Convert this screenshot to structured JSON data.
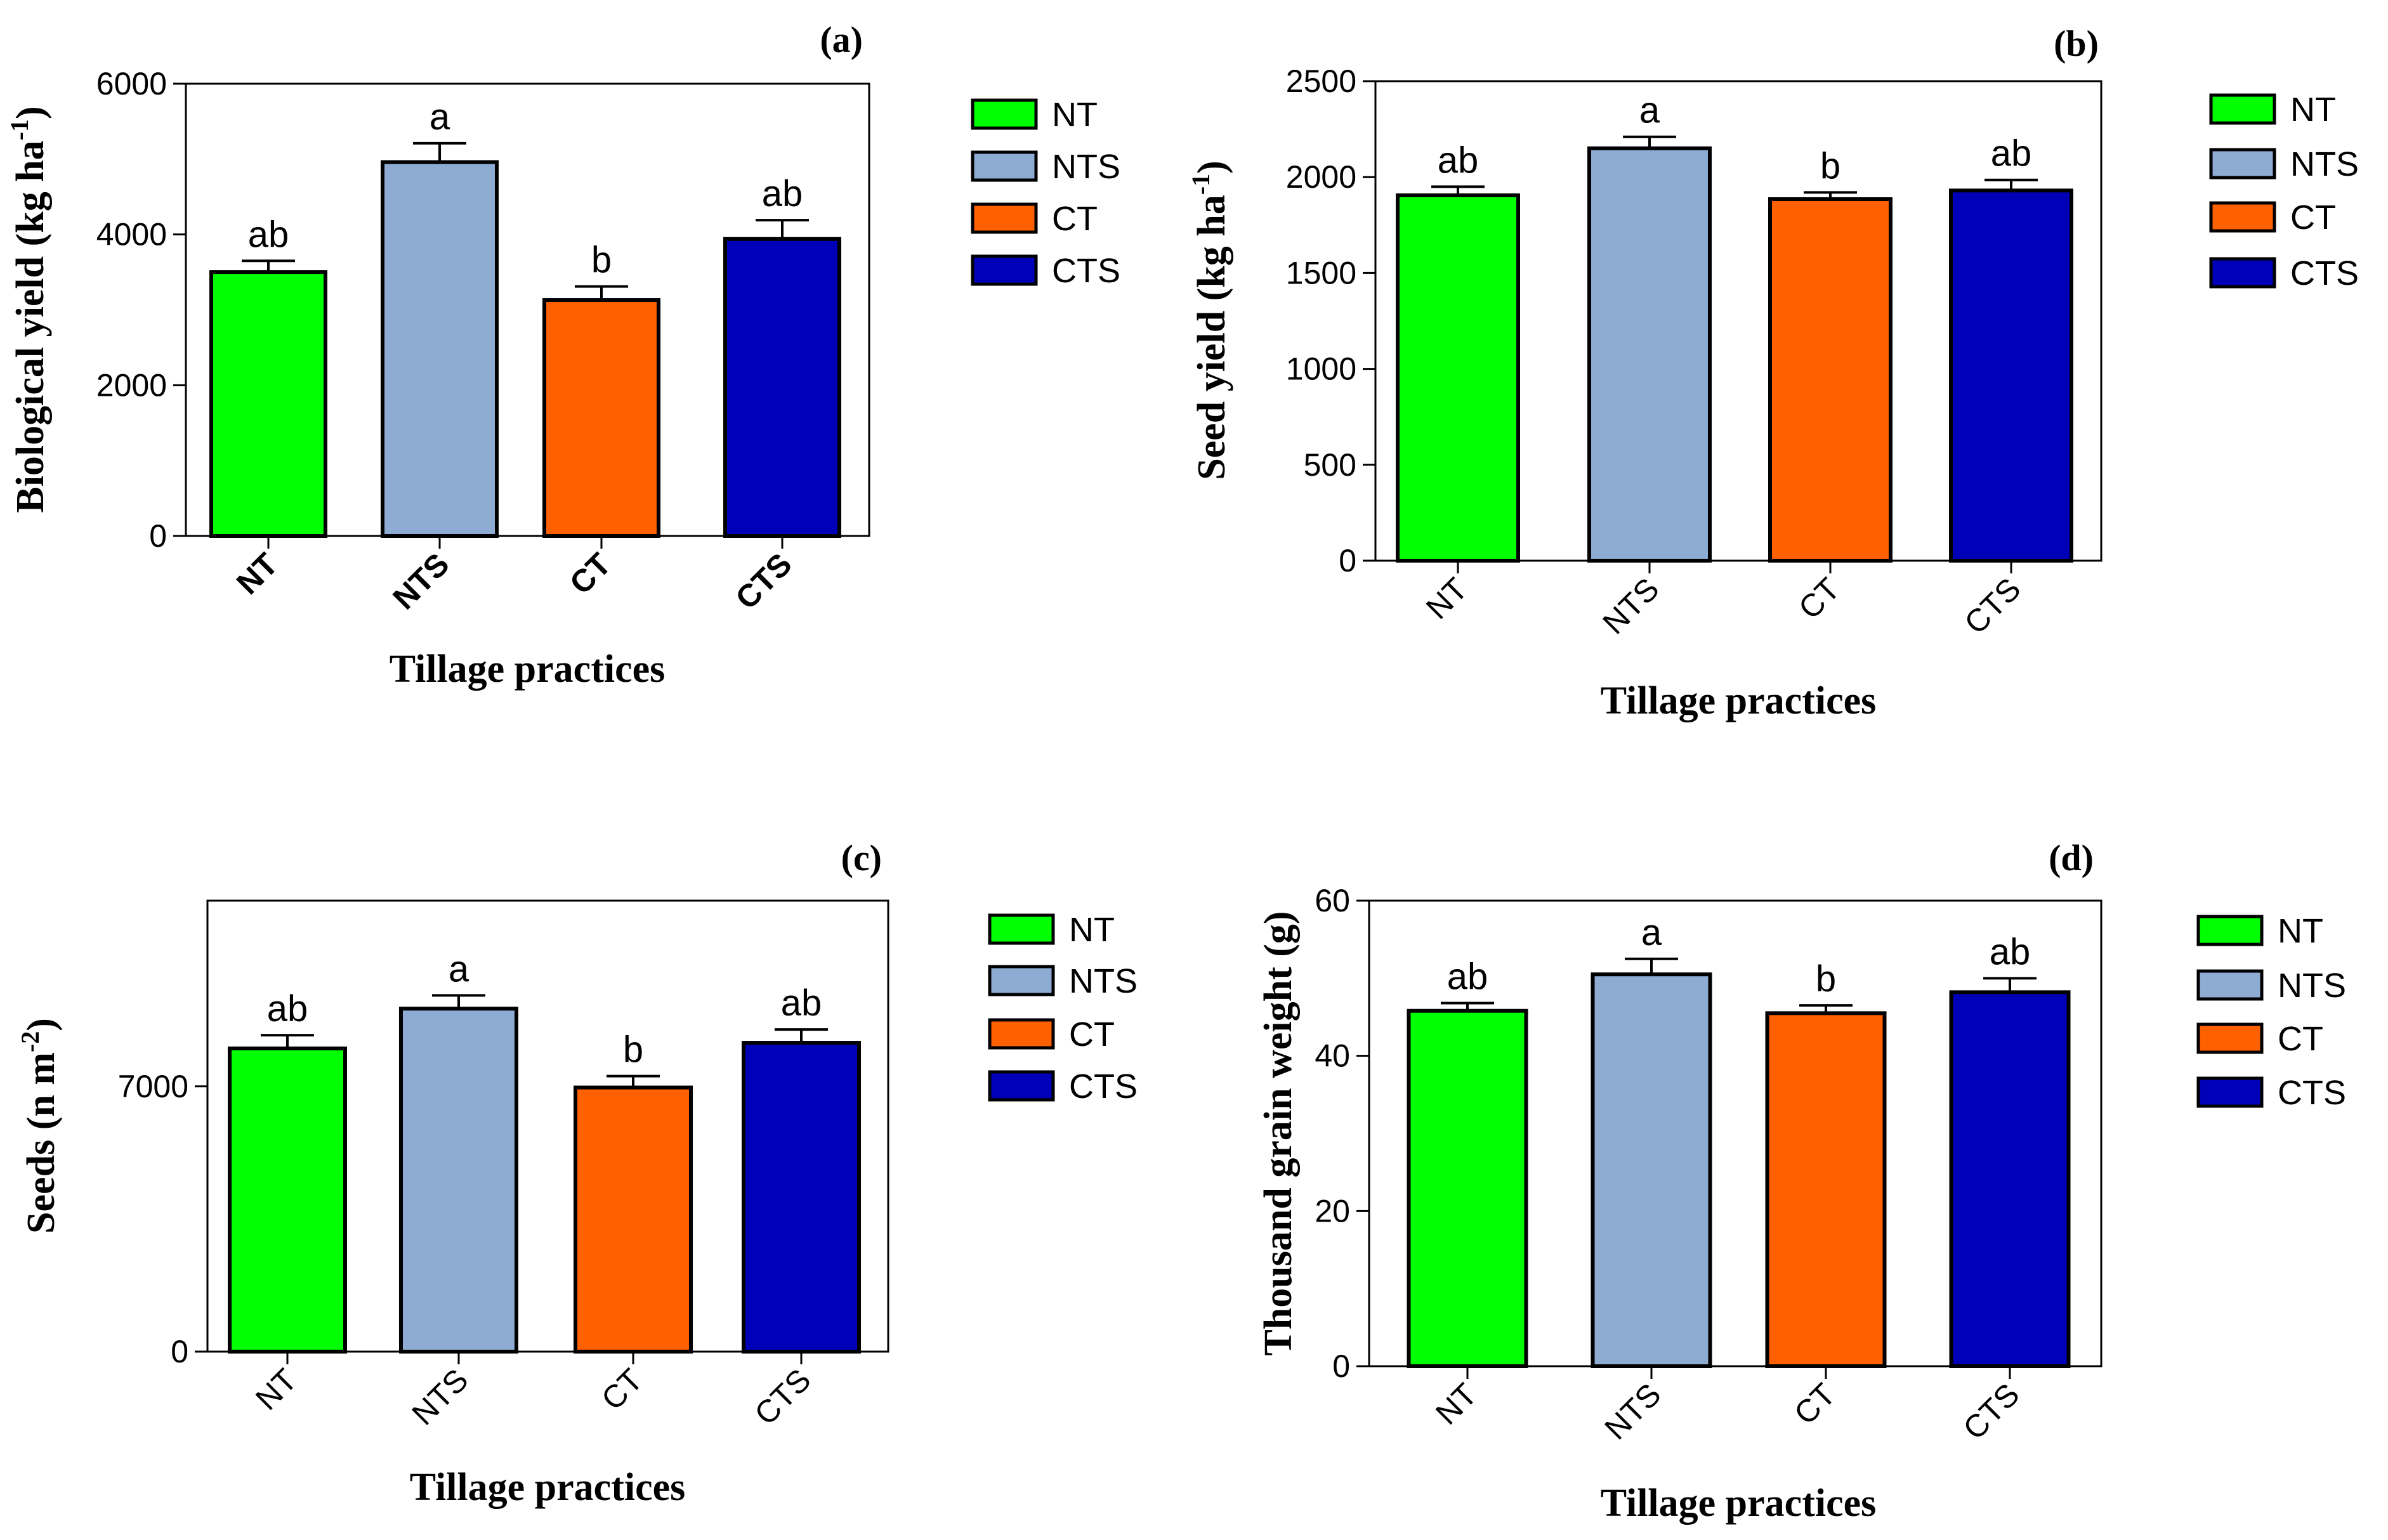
{
  "palette": {
    "NT": "#00ff00",
    "NTS": "#8eacd3",
    "CT": "#ff6000",
    "CTS": "#0000b8"
  },
  "chart_data": [
    {
      "type": "bar",
      "panel": "(a)",
      "categories": [
        "NT",
        "NTS",
        "CT",
        "CTS"
      ],
      "values": [
        3500,
        4960,
        3130,
        3940
      ],
      "errors": [
        150,
        250,
        180,
        250
      ],
      "letters": [
        "ab",
        "a",
        "b",
        "ab"
      ],
      "title": "",
      "xlabel": "Tillage practices",
      "ylabel": "Biological yield (kg ha",
      "ylabel_sup": "-1",
      "ylabel_tail": ")",
      "ylim": [
        0,
        6000
      ],
      "yticks": [
        "0",
        "2000",
        "4000",
        "6000"
      ],
      "legend": [
        "NT",
        "NTS",
        "CT",
        "CTS"
      ],
      "legend_position": "right",
      "bold_categories": true
    },
    {
      "type": "bar",
      "panel": "(b)",
      "categories": [
        "NT",
        "NTS",
        "CT",
        "CTS"
      ],
      "values": [
        1905,
        2150,
        1885,
        1930
      ],
      "errors": [
        45,
        60,
        35,
        55
      ],
      "letters": [
        "ab",
        "a",
        "b",
        "ab"
      ],
      "title": "",
      "xlabel": "Tillage practices",
      "ylabel": "Seed yield (kg ha",
      "ylabel_sup": "-1",
      "ylabel_tail": ")",
      "ylim": [
        0,
        2500
      ],
      "yticks": [
        "0",
        "500",
        "1000",
        "1500",
        "2000",
        "2500"
      ],
      "legend": [
        "NT",
        "NTS",
        "CT",
        "CTS"
      ],
      "legend_position": "right",
      "bold_categories": false
    },
    {
      "type": "bar",
      "panel": "(c)",
      "categories": [
        "NT",
        "NTS",
        "CT",
        "CTS"
      ],
      "values": [
        8000,
        9050,
        6970,
        8150
      ],
      "errors": [
        350,
        350,
        300,
        350
      ],
      "letters": [
        "ab",
        "a",
        "b",
        "ab"
      ],
      "title": "",
      "xlabel": "Tillage practices",
      "ylabel": "Seeds (n m",
      "ylabel_sup": "-2",
      "ylabel_tail": ")",
      "ylim": [
        0,
        11900
      ],
      "yticks": [
        "0",
        "7000"
      ],
      "ytick_values": [
        0,
        7000
      ],
      "legend": [
        "NT",
        "NTS",
        "CT",
        "CTS"
      ],
      "legend_position": "right",
      "bold_categories": false
    },
    {
      "type": "bar",
      "panel": "(d)",
      "categories": [
        "NT",
        "NTS",
        "CT",
        "CTS"
      ],
      "values": [
        45.8,
        50.5,
        45.5,
        48.2
      ],
      "errors": [
        1.0,
        2.0,
        1.0,
        1.8
      ],
      "letters": [
        "ab",
        "a",
        "b",
        "ab"
      ],
      "title": "",
      "xlabel": "Tillage practices",
      "ylabel": "Thousand grain weight (g)",
      "ylabel_sup": "",
      "ylabel_tail": "",
      "ylim": [
        0,
        60
      ],
      "yticks": [
        "0",
        "20",
        "40",
        "60"
      ],
      "legend": [
        "NT",
        "NTS",
        "CT",
        "CTS"
      ],
      "legend_position": "right",
      "bold_categories": false
    }
  ]
}
